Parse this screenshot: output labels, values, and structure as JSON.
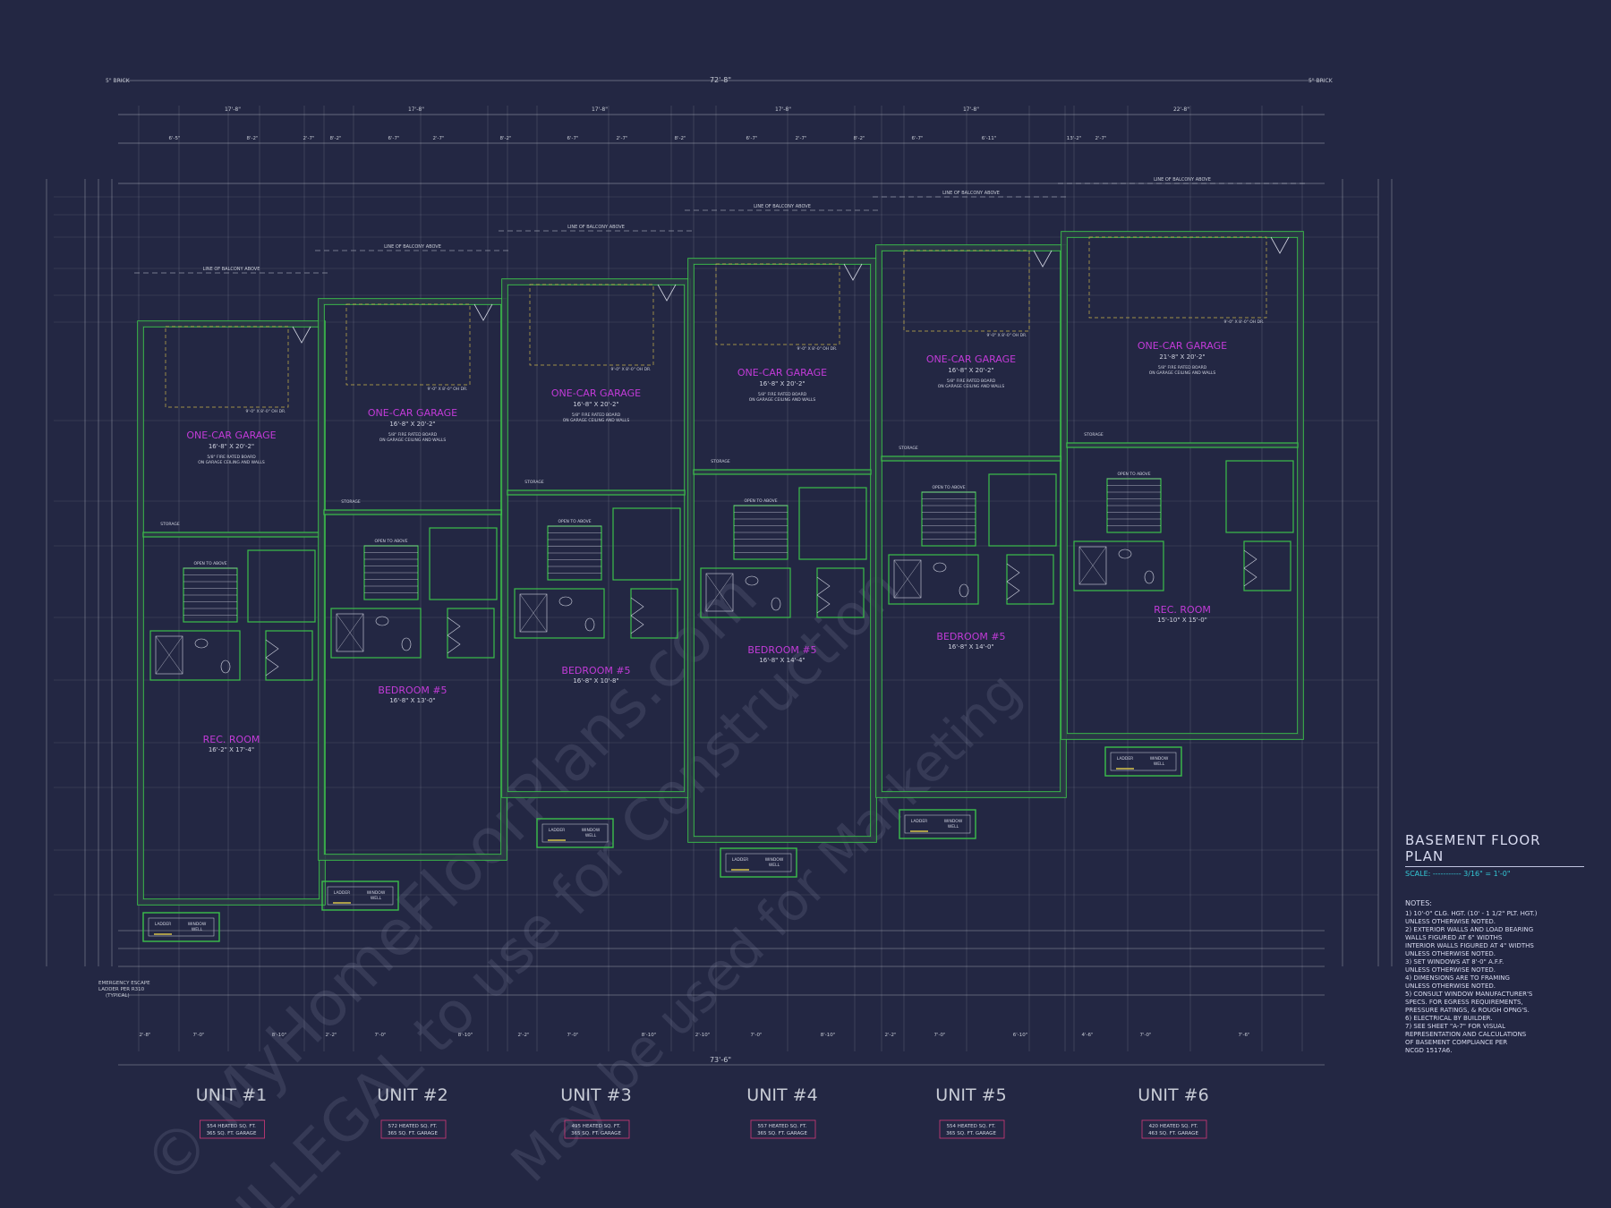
{
  "sheet": {
    "title": "BASEMENT FLOOR PLAN",
    "scale": "SCALE: ----------- 3/16\" = 1'-0\"",
    "notes_heading": "NOTES:",
    "notes": [
      "1) 10'-0\" CLG. HGT. (10' - 1 1/2\" PLT. HGT.)\nUNLESS OTHERWISE NOTED.",
      "2) EXTERIOR WALLS AND LOAD BEARING\nWALLS FIGURED AT 6\" WIDTHS\nINTERIOR WALLS FIGURED AT 4\" WIDTHS\nUNLESS OTHERWISE NOTED.",
      "3) SET WINDOWS AT 8'-0\" A.F.F.\nUNLESS OTHERWISE NOTED.",
      "4) DIMENSIONS ARE TO FRAMING\nUNLESS OTHERWISE NOTED.",
      "5) CONSULT WINDOW MANUFACTURER'S\nSPECS. FOR EGRESS REQUIREMENTS,\nPRESSURE RATINGS, & ROUGH OPNG'S.",
      "6) ELECTRICAL BY BUILDER.",
      "7) SEE SHEET \"A-7\" FOR VISUAL\nREPRESENTATION AND CALCULATIONS\nOF BASEMENT COMPLIANCE PER\nNCGD 1517A6."
    ]
  },
  "units": [
    {
      "label": "UNIT #1",
      "heated": "554 HEATED SQ. FT.",
      "garage": "365 SQ. FT. GARAGE",
      "garage_room": "ONE-CAR GARAGE",
      "garage_dim": "16'-8\" X 20'-2\"",
      "room": "REC. ROOM",
      "room_dim": "16'-2\" X 17'-4\""
    },
    {
      "label": "UNIT #2",
      "heated": "572 HEATED SQ. FT.",
      "garage": "365 SQ. FT. GARAGE",
      "garage_room": "ONE-CAR GARAGE",
      "garage_dim": "16'-8\" X 20'-2\"",
      "room": "BEDROOM #5",
      "room_dim": "16'-8\" X 13'-0\""
    },
    {
      "label": "UNIT #3",
      "heated": "495 HEATED SQ. FT.",
      "garage": "365 SQ. FT. GARAGE",
      "garage_room": "ONE-CAR GARAGE",
      "garage_dim": "16'-8\" X 20'-2\"",
      "room": "BEDROOM #5",
      "room_dim": "16'-8\" X 10'-8\""
    },
    {
      "label": "UNIT #4",
      "heated": "557 HEATED SQ. FT.",
      "garage": "365 SQ. FT. GARAGE",
      "garage_room": "ONE-CAR GARAGE",
      "garage_dim": "16'-8\" X 20'-2\"",
      "room": "BEDROOM #5",
      "room_dim": "16'-8\" X 14'-4\""
    },
    {
      "label": "UNIT #5",
      "heated": "554 HEATED SQ. FT.",
      "garage": "365 SQ. FT. GARAGE",
      "garage_room": "ONE-CAR GARAGE",
      "garage_dim": "16'-8\" X 20'-2\"",
      "room": "BEDROOM #5",
      "room_dim": "16'-8\" X 14'-0\""
    },
    {
      "label": "UNIT #6",
      "heated": "420 HEATED SQ. FT.",
      "garage": "463 SQ. FT. GARAGE",
      "garage_room": "ONE-CAR GARAGE",
      "garage_dim": "21'-8\" X 20'-2\"",
      "room": "REC. ROOM",
      "room_dim": "15'-10\" X 15'-0\""
    }
  ],
  "labels": {
    "overall_width": "72'-8\"",
    "overall_bottom": "73'-6\"",
    "brick_left": "5\" BRICK",
    "brick_right": "5\" BRICK",
    "balcony": "LINE OF BALCONY ABOVE",
    "fire_board": "5/8\" FIRE RATED BOARD\nON GARAGE CEILING AND WALLS",
    "garage_door": "9'-0\" X 8'-0\" OH DR.",
    "storage": "STORAGE",
    "open_to_above": "OPEN TO ABOVE",
    "egress_note": "EMERGENCY ESCAPE\nLADDER PER R310\n(TYPICAL)",
    "window_well": "WINDOW WELL",
    "ladder": "LADDER"
  },
  "colors": {
    "background": "#232743",
    "wall": "#3bbf4a",
    "wall_fill": "#2b3a45",
    "room_label": "#c23bd8",
    "dimension": "#c8ccd6",
    "furniture": "#d0d3e0",
    "accent": "#33c9d6",
    "sqft_box": "#d23a7a",
    "watermark": "#9aa0b8"
  },
  "watermark": {
    "lines": [
      "© MyHomeFloorPlans.com",
      "ILLEGAL to use for Construction",
      "May be used for Marketing"
    ]
  }
}
